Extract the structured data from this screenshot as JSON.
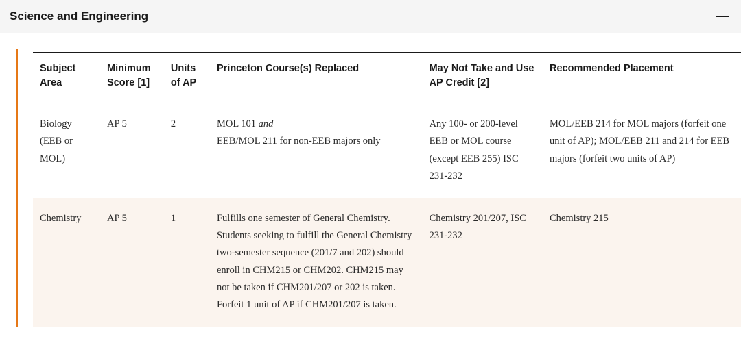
{
  "accordion": {
    "title": "Science and Engineering",
    "icon_name": "minus-icon"
  },
  "table": {
    "accent_border_color": "#e67817",
    "header_border_top_color": "#1a1a1a",
    "row_alt_bg": "#fbf4ee",
    "columns": [
      "Subject Area",
      "Minimum Score [1]",
      "Units of AP",
      "Princeton Course(s) Replaced",
      "May Not Take and Use AP Credit [2]",
      "Recommended Placement"
    ],
    "rows": [
      {
        "subject": "Biology (EEB or MOL)",
        "score": "AP 5",
        "units": "2",
        "replaced_line1": "MOL 101 ",
        "replaced_and": "and",
        "replaced_line2": "EEB/MOL 211 for non-EEB majors only",
        "maynot": "Any 100- or 200-level EEB or MOL course (except EEB 255) ISC 231-232",
        "rec": "MOL/EEB 214 for MOL majors (forfeit one unit of AP); MOL/EEB 211 and 214 for EEB majors (forfeit two units of AP)"
      },
      {
        "subject": "Chemistry",
        "score": "AP 5",
        "units": "1",
        "replaced": "Fulfills one semester of General Chemistry. Students seeking to fulfill the General Chemistry two-semester sequence (201/7 and 202) should enroll in CHM215 or CHM202. CHM215 may not be taken if CHM201/207 or 202 is taken. Forfeit 1 unit of AP if CHM201/207 is taken.",
        "maynot": "Chemistry 201/207, ISC 231-232",
        "rec": "Chemistry 215"
      }
    ]
  }
}
